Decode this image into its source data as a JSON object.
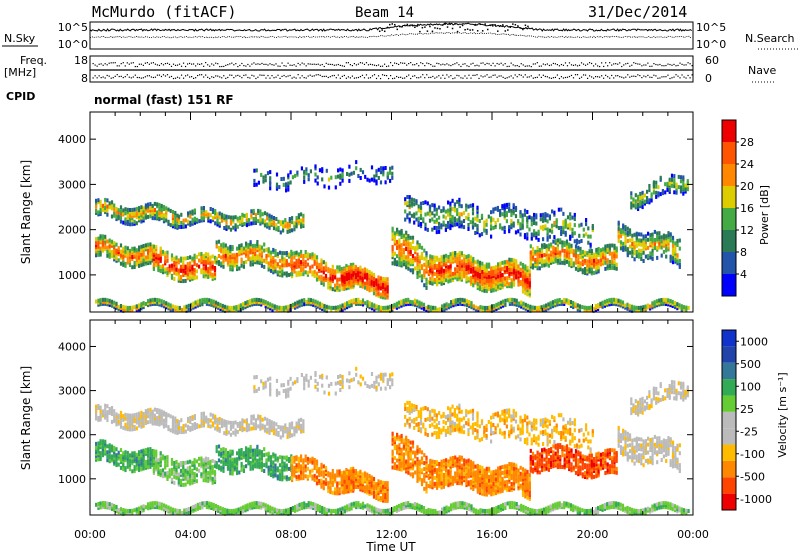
{
  "header": {
    "station": "McMurdo (fitACF)",
    "beam": "Beam 14",
    "date": "31/Dec/2014",
    "cpid_label": "CPID",
    "cpid_value": "normal (fast) 151 RF"
  },
  "noise_panel": {
    "left_label": "N.Sky",
    "right_label": "N.Search",
    "left_ticks": [
      "10^5",
      "10^0"
    ],
    "right_ticks": [
      "10^5",
      "10^0"
    ]
  },
  "freq_panel": {
    "left_label_1": "Freq.",
    "left_label_2": "[MHz]",
    "right_label": "Nave",
    "left_ticks": [
      "18",
      "8"
    ],
    "right_ticks": [
      "60",
      "0"
    ]
  },
  "colors": {
    "power": [
      "#0000ff",
      "#2255aa",
      "#2a7a55",
      "#44aa44",
      "#ddcc00",
      "#ff8800",
      "#ff5500",
      "#ee0000"
    ],
    "velocity": [
      "#ee0000",
      "#ff4400",
      "#ff8800",
      "#ffbb00",
      "#bbbbbb",
      "#bbbbbb",
      "#66cc33",
      "#33aa55",
      "#337799",
      "#2244aa",
      "#1133cc"
    ]
  },
  "chart_data": [
    {
      "type": "heatmap",
      "quantity": "Power",
      "ylabel": "Slant Range [km]",
      "ylim": [
        180,
        4600
      ],
      "xlim_hours": [
        0,
        24
      ],
      "yticks": [
        "1000",
        "2000",
        "3000",
        "4000"
      ],
      "colorbar_label": "Power [dB]",
      "colorbar_ticks": [
        "4",
        "8",
        "12",
        "16",
        "20",
        "24",
        "28"
      ],
      "colorbar_range": [
        0,
        32
      ]
    },
    {
      "type": "heatmap",
      "quantity": "Velocity",
      "ylabel": "Slant Range [km]",
      "ylim": [
        180,
        4600
      ],
      "xlim_hours": [
        0,
        24
      ],
      "yticks": [
        "1000",
        "2000",
        "3000",
        "4000"
      ],
      "colorbar_label": "Velocity [m s⁻¹]",
      "colorbar_ticks": [
        "1000",
        "500",
        "100",
        "25",
        "-25",
        "-100",
        "-500",
        "-1000"
      ],
      "xlabel": "Time UT",
      "xticks": [
        "00:00",
        "04:00",
        "08:00",
        "12:00",
        "16:00",
        "20:00",
        "00:00"
      ]
    }
  ]
}
